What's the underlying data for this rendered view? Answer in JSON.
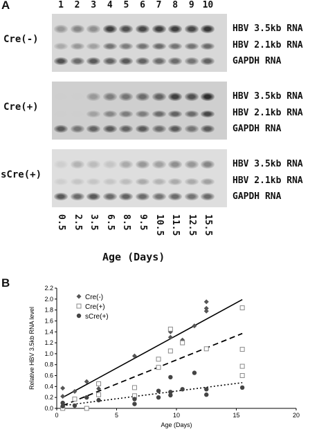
{
  "panel_a": {
    "letter": "A",
    "lanes": [
      "1",
      "2",
      "3",
      "4",
      "5",
      "6",
      "7",
      "8",
      "9",
      "10"
    ],
    "groups": [
      {
        "label": "Cre(-)",
        "bands": [
          "HBV 3.5kb RNA",
          "HBV 2.1kb RNA",
          "GAPDH RNA"
        ],
        "intensity_35": [
          0.35,
          0.45,
          0.4,
          0.85,
          0.75,
          0.8,
          0.85,
          0.85,
          0.8,
          0.9
        ],
        "intensity_21": [
          0.25,
          0.35,
          0.3,
          0.55,
          0.5,
          0.55,
          0.6,
          0.55,
          0.55,
          0.6
        ],
        "intensity_gapdh": [
          0.75,
          0.6,
          0.7,
          0.65,
          0.7,
          0.65,
          0.6,
          0.6,
          0.55,
          0.65
        ]
      },
      {
        "label": "Cre(+)",
        "bands": [
          "HBV 3.5kb RNA",
          "HBV 2.1kb RNA",
          "GAPDH RNA"
        ],
        "intensity_35": [
          0.05,
          0.05,
          0.35,
          0.5,
          0.55,
          0.6,
          0.65,
          0.85,
          0.75,
          0.95
        ],
        "intensity_21": [
          0.05,
          0.05,
          0.3,
          0.45,
          0.5,
          0.5,
          0.6,
          0.65,
          0.6,
          0.8
        ],
        "intensity_gapdh": [
          0.7,
          0.55,
          0.65,
          0.7,
          0.65,
          0.7,
          0.6,
          0.7,
          0.55,
          0.7
        ]
      },
      {
        "label": "sCre(+)",
        "bands": [
          "HBV 3.5kb RNA",
          "HBV 2.1kb RNA",
          "GAPDH RNA"
        ],
        "intensity_35": [
          0.05,
          0.2,
          0.15,
          0.1,
          0.25,
          0.35,
          0.3,
          0.4,
          0.35,
          0.45
        ],
        "intensity_21": [
          0.05,
          0.1,
          0.1,
          0.1,
          0.15,
          0.25,
          0.2,
          0.25,
          0.25,
          0.3
        ],
        "intensity_gapdh": [
          0.7,
          0.6,
          0.7,
          0.6,
          0.65,
          0.6,
          0.55,
          0.6,
          0.55,
          0.6
        ]
      }
    ],
    "ages": [
      "0.5",
      "2.5",
      "3.5",
      "6.5",
      "8.5",
      "9.5",
      "10.5",
      "11.5",
      "12.5",
      "15.5"
    ],
    "x_title": "Age (Days)"
  },
  "panel_b": {
    "letter": "B",
    "chart_data": {
      "type": "scatter",
      "xlabel": "Age (Days)",
      "ylabel": "Relative HBV 3.5kb RNA level",
      "xlim": [
        0,
        20
      ],
      "ylim": [
        0,
        2.2
      ],
      "xticks": [
        "0",
        "5",
        "10",
        "15",
        "20"
      ],
      "yticks": [
        "0.0",
        "0.2",
        "0.4",
        "0.6",
        "0.8",
        "1.0",
        "1.2",
        "1.4",
        "1.6",
        "1.8",
        "2.0",
        "2.2"
      ],
      "legend_position": "top-left",
      "series": [
        {
          "name": "Cre(-)",
          "marker": "diamond",
          "color": "#555555",
          "trend": "solid",
          "trend_line": [
            [
              0.5,
              0.2
            ],
            [
              15.5,
              1.99
            ]
          ],
          "points": [
            [
              0.5,
              0.37
            ],
            [
              0.5,
              0.22
            ],
            [
              1.5,
              0.31
            ],
            [
              2.5,
              0.49
            ],
            [
              3.5,
              0.36
            ],
            [
              6.5,
              0.96
            ],
            [
              9.5,
              1.4
            ],
            [
              9.5,
              1.3
            ],
            [
              10.5,
              1.25
            ],
            [
              11.5,
              1.51
            ],
            [
              12.5,
              1.95
            ],
            [
              12.5,
              1.83
            ],
            [
              12.5,
              1.78
            ]
          ]
        },
        {
          "name": "Cre(+)",
          "marker": "square-open",
          "color": "#555555",
          "trend": "dashed",
          "trend_line": [
            [
              0.5,
              0.05
            ],
            [
              15.5,
              1.37
            ]
          ],
          "points": [
            [
              0.5,
              0.0
            ],
            [
              1.5,
              0.17
            ],
            [
              2.5,
              0.0
            ],
            [
              3.5,
              0.45
            ],
            [
              3.5,
              0.25
            ],
            [
              6.5,
              0.38
            ],
            [
              6.5,
              0.23
            ],
            [
              8.5,
              0.9
            ],
            [
              8.5,
              0.75
            ],
            [
              9.5,
              1.45
            ],
            [
              9.5,
              1.05
            ],
            [
              10.5,
              1.2
            ],
            [
              12.5,
              1.09
            ],
            [
              15.5,
              1.84
            ],
            [
              15.5,
              1.08
            ],
            [
              15.5,
              0.77
            ],
            [
              15.5,
              0.6
            ]
          ]
        },
        {
          "name": "sCre(+)",
          "marker": "circle",
          "color": "#444444",
          "trend": "dotted",
          "trend_line": [
            [
              0.5,
              0.05
            ],
            [
              15.5,
              0.47
            ]
          ],
          "points": [
            [
              0.5,
              0.1
            ],
            [
              0.5,
              0.04
            ],
            [
              1.5,
              0.05
            ],
            [
              2.5,
              0.2
            ],
            [
              3.5,
              0.15
            ],
            [
              6.5,
              0.17
            ],
            [
              6.5,
              0.08
            ],
            [
              8.5,
              0.32
            ],
            [
              8.5,
              0.2
            ],
            [
              9.5,
              0.57
            ],
            [
              9.5,
              0.3
            ],
            [
              9.5,
              0.24
            ],
            [
              10.5,
              0.35
            ],
            [
              11.5,
              0.65
            ],
            [
              12.5,
              0.35
            ],
            [
              12.5,
              0.25
            ],
            [
              15.5,
              0.38
            ]
          ]
        }
      ]
    }
  }
}
